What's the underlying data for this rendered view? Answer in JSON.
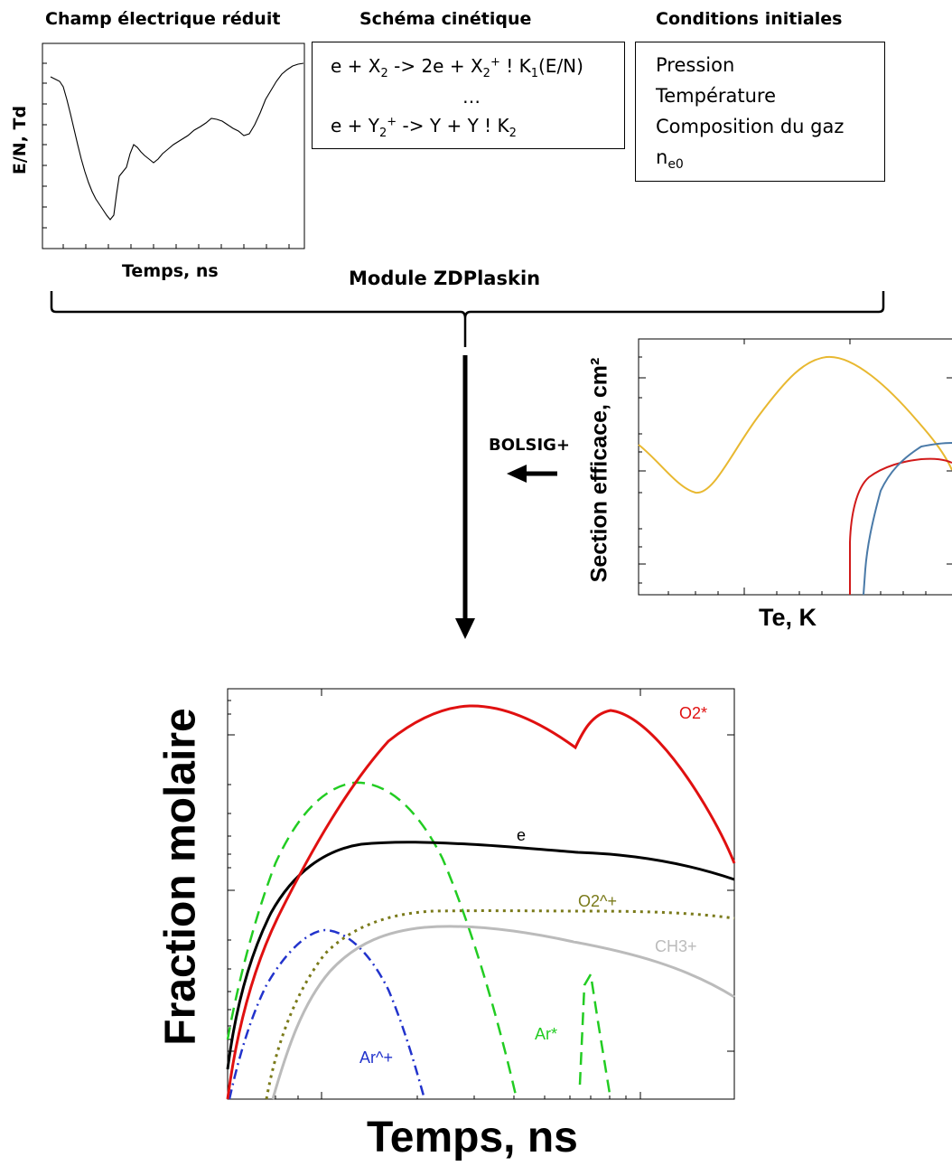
{
  "headers": {
    "field": "Champ électrique réduit",
    "kinetics": "Schéma cinétique",
    "initial": "Conditions initiales"
  },
  "field_plot": {
    "ylabel": "E/N, Td",
    "xlabel": "Temps, ns"
  },
  "kinetics": {
    "line1": {
      "a": "e + X",
      "a_sub": "2",
      "b": " -> 2e + X",
      "b_sub": "2",
      "b_sup": "+",
      "c": "  ! K",
      "c_sub": "1",
      "d": "(E/N)"
    },
    "dots": "…",
    "line2": {
      "a": "e + Y",
      "a_sub": "2",
      "a_sup": "+",
      "b": " ->  Y + Y",
      "c": "     !  K",
      "c_sub": "2"
    }
  },
  "initial": {
    "items": [
      "Pression",
      "Température",
      "Composition du gaz"
    ],
    "ne_main": "n",
    "ne_sub": "e0"
  },
  "module_label": "Module ZDPlaskin",
  "bolsig_label": "BOLSIG+",
  "cross_section": {
    "ylabel": "Section efficace, cm²",
    "xlabel": "Te, K",
    "colors": {
      "yellow": "#e8b830",
      "red": "#d11a1a",
      "blue": "#4a7aa8"
    }
  },
  "chart_data": {
    "type": "line",
    "ylabel": "Fraction molaire",
    "xlabel": "Temps, ns",
    "x_scale": "log",
    "y_scale": "log",
    "grid": false,
    "series": [
      {
        "name": "O2*",
        "color": "#e01010",
        "style": "solid"
      },
      {
        "name": "e",
        "color": "#000000",
        "style": "solid"
      },
      {
        "name": "O2^+",
        "color": "#7a7a1a",
        "style": "dotted"
      },
      {
        "name": "CH3+",
        "color": "#bbbbbb",
        "style": "solid"
      },
      {
        "name": "Ar*",
        "color": "#22cc22",
        "style": "dashed"
      },
      {
        "name": "Ar^+",
        "color": "#2233cc",
        "style": "dashdot"
      }
    ]
  }
}
